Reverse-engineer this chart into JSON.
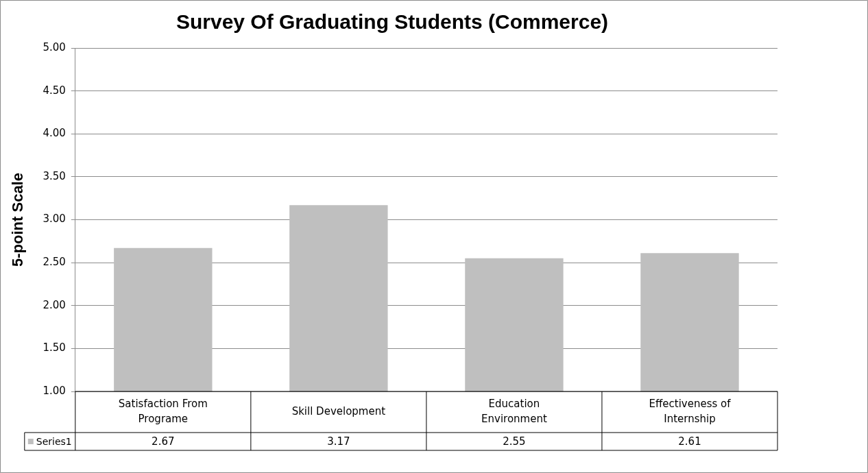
{
  "chart_data": {
    "type": "bar",
    "title": "Survey Of Graduating Students (Commerce)",
    "ylabel": "5-point Scale",
    "categories": [
      "Satisfaction From Programe",
      "Skill Development",
      "Education Environment",
      "Effectiveness of Internship"
    ],
    "series": [
      {
        "name": "Series1",
        "color": "#bfbfbf",
        "values": [
          2.67,
          3.17,
          2.55,
          2.61
        ]
      }
    ],
    "ylim": [
      1,
      5
    ],
    "yticks": [
      {
        "value": 1,
        "label": "1.00"
      },
      {
        "value": 1.5,
        "label": "1.50"
      },
      {
        "value": 2,
        "label": "2.00"
      },
      {
        "value": 2.5,
        "label": "2.50"
      },
      {
        "value": 3,
        "label": "3.00"
      },
      {
        "value": 3.5,
        "label": "3.50"
      },
      {
        "value": 4,
        "label": "4.00"
      },
      {
        "value": 4.5,
        "label": "4.50"
      },
      {
        "value": 5,
        "label": "5.00"
      }
    ],
    "grid": "y",
    "legend": "bottom left",
    "data_labels": true
  }
}
